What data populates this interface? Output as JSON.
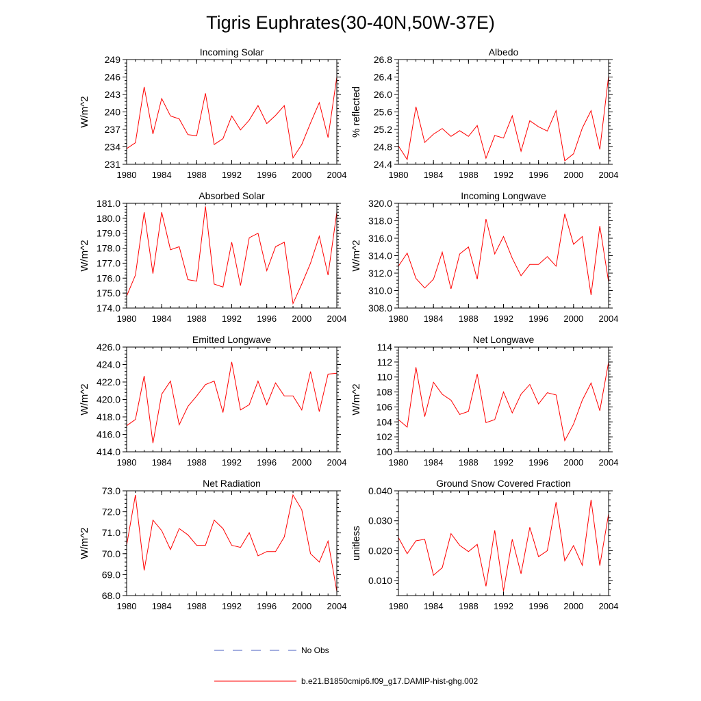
{
  "figure": {
    "title": "Tigris Euphrates(30-40N,50W-37E)",
    "legend": [
      {
        "label": "No Obs",
        "style": "dashed",
        "color": "#4a5fc1"
      },
      {
        "label": "b.e21.B1850cmip6.f09_g17.DAMIP-hist-ghg.002",
        "style": "solid",
        "color": "#ff0000"
      }
    ]
  },
  "chart_data": [
    {
      "type": "line",
      "title": "Incoming Solar",
      "ylabel": "W/m^2",
      "xlim": [
        1980,
        2004
      ],
      "ylim": [
        231,
        249
      ],
      "xticks": [
        "1980",
        "1984",
        "1988",
        "1992",
        "1996",
        "2000",
        "2004"
      ],
      "yticks": [
        "231",
        "234",
        "237",
        "240",
        "243",
        "246",
        "249"
      ],
      "series": [
        {
          "color": "#ff0000",
          "x": [
            1980,
            1981,
            1982,
            1983,
            1984,
            1985,
            1986,
            1987,
            1988,
            1989,
            1990,
            1991,
            1992,
            1993,
            1994,
            1995,
            1996,
            1997,
            1998,
            1999,
            2000,
            2001,
            2002,
            2003,
            2004
          ],
          "values": [
            233.7,
            234.7,
            244.3,
            236.2,
            242.3,
            239.3,
            238.8,
            236.1,
            235.9,
            243.2,
            234.4,
            235.4,
            239.3,
            236.9,
            238.6,
            241.1,
            238.0,
            239.4,
            241.1,
            232.1,
            234.4,
            238.1,
            241.6,
            235.6,
            246.0
          ]
        }
      ]
    },
    {
      "type": "line",
      "title": "Albedo",
      "ylabel": "% reflected",
      "xlim": [
        1980,
        2004
      ],
      "ylim": [
        24.4,
        26.8
      ],
      "xticks": [
        "1980",
        "1984",
        "1988",
        "1992",
        "1996",
        "2000",
        "2004"
      ],
      "yticks": [
        "24.4",
        "24.8",
        "25.2",
        "25.6",
        "26.0",
        "26.4",
        "26.8"
      ],
      "series": [
        {
          "color": "#ff0000",
          "x": [
            1980,
            1981,
            1982,
            1983,
            1984,
            1985,
            1986,
            1987,
            1988,
            1989,
            1990,
            1991,
            1992,
            1993,
            1994,
            1995,
            1996,
            1997,
            1998,
            1999,
            2000,
            2001,
            2002,
            2003,
            2004
          ],
          "values": [
            24.82,
            24.51,
            25.72,
            24.9,
            25.09,
            25.22,
            25.04,
            25.17,
            25.04,
            25.29,
            24.54,
            25.06,
            25.0,
            25.51,
            24.7,
            25.4,
            25.26,
            25.16,
            25.63,
            24.48,
            24.64,
            25.23,
            25.63,
            24.74,
            26.42
          ]
        }
      ]
    },
    {
      "type": "line",
      "title": "Absorbed Solar",
      "ylabel": "W/m^2",
      "xlim": [
        1980,
        2004
      ],
      "ylim": [
        174.0,
        181.0
      ],
      "xticks": [
        "1980",
        "1984",
        "1988",
        "1992",
        "1996",
        "2000",
        "2004"
      ],
      "yticks": [
        "174.0",
        "175.0",
        "176.0",
        "177.0",
        "178.0",
        "179.0",
        "180.0",
        "181.0"
      ],
      "series": [
        {
          "color": "#ff0000",
          "x": [
            1980,
            1981,
            1982,
            1983,
            1984,
            1985,
            1986,
            1987,
            1988,
            1989,
            1990,
            1991,
            1992,
            1993,
            1994,
            1995,
            1996,
            1997,
            1998,
            1999,
            2000,
            2001,
            2002,
            2003,
            2004
          ],
          "values": [
            174.8,
            176.2,
            180.4,
            176.3,
            180.4,
            177.9,
            178.1,
            175.9,
            175.8,
            180.8,
            175.6,
            175.4,
            178.4,
            175.5,
            178.7,
            179.0,
            176.5,
            178.1,
            178.4,
            174.3,
            175.6,
            177.0,
            178.8,
            176.2,
            180.4
          ]
        }
      ]
    },
    {
      "type": "line",
      "title": "Incoming Longwave",
      "ylabel": "W/m^2",
      "xlim": [
        1980,
        2004
      ],
      "ylim": [
        308.0,
        320.0
      ],
      "xticks": [
        "1980",
        "1984",
        "1988",
        "1992",
        "1996",
        "2000",
        "2004"
      ],
      "yticks": [
        "308.0",
        "310.0",
        "312.0",
        "314.0",
        "316.0",
        "318.0",
        "320.0"
      ],
      "series": [
        {
          "color": "#ff0000",
          "x": [
            1980,
            1981,
            1982,
            1983,
            1984,
            1985,
            1986,
            1987,
            1988,
            1989,
            1990,
            1991,
            1992,
            1993,
            1994,
            1995,
            1996,
            1997,
            1998,
            1999,
            2000,
            2001,
            2002,
            2003,
            2004
          ],
          "values": [
            312.8,
            314.3,
            311.4,
            310.3,
            311.3,
            314.4,
            310.2,
            314.2,
            315.0,
            311.3,
            318.2,
            314.2,
            316.2,
            313.7,
            311.7,
            313.0,
            313.0,
            313.9,
            312.8,
            318.8,
            315.3,
            316.2,
            309.5,
            317.4,
            311.0
          ]
        }
      ]
    },
    {
      "type": "line",
      "title": "Emitted Longwave",
      "ylabel": "W/m^2",
      "xlim": [
        1980,
        2004
      ],
      "ylim": [
        414.0,
        426.0
      ],
      "xticks": [
        "1980",
        "1984",
        "1988",
        "1992",
        "1996",
        "2000",
        "2004"
      ],
      "yticks": [
        "414.0",
        "416.0",
        "418.0",
        "420.0",
        "422.0",
        "424.0",
        "426.0"
      ],
      "series": [
        {
          "color": "#ff0000",
          "x": [
            1980,
            1981,
            1982,
            1983,
            1984,
            1985,
            1986,
            1987,
            1988,
            1989,
            1990,
            1991,
            1992,
            1993,
            1994,
            1995,
            1996,
            1997,
            1998,
            1999,
            2000,
            2001,
            2002,
            2003,
            2004
          ],
          "values": [
            417.0,
            417.7,
            422.7,
            415.0,
            420.6,
            422.1,
            417.1,
            419.2,
            420.4,
            421.7,
            422.1,
            418.5,
            424.3,
            418.8,
            419.4,
            422.1,
            419.4,
            421.9,
            420.4,
            420.4,
            418.8,
            423.2,
            418.6,
            422.9,
            423.0
          ]
        }
      ]
    },
    {
      "type": "line",
      "title": "Net Longwave",
      "ylabel": "W/m^2",
      "xlim": [
        1980,
        2004
      ],
      "ylim": [
        100,
        114
      ],
      "xticks": [
        "1980",
        "1984",
        "1988",
        "1992",
        "1996",
        "2000",
        "2004"
      ],
      "yticks": [
        "100",
        "102",
        "104",
        "106",
        "108",
        "110",
        "112",
        "114"
      ],
      "series": [
        {
          "color": "#ff0000",
          "x": [
            1980,
            1981,
            1982,
            1983,
            1984,
            1985,
            1986,
            1987,
            1988,
            1989,
            1990,
            1991,
            1992,
            1993,
            1994,
            1995,
            1996,
            1997,
            1998,
            1999,
            2000,
            2001,
            2002,
            2003,
            2004
          ],
          "values": [
            104.3,
            103.3,
            111.3,
            104.7,
            109.3,
            107.7,
            106.9,
            105.0,
            105.4,
            110.4,
            103.9,
            104.3,
            108.0,
            105.2,
            107.7,
            109.0,
            106.4,
            107.9,
            107.6,
            101.5,
            103.7,
            106.9,
            109.2,
            105.5,
            112.0
          ]
        }
      ]
    },
    {
      "type": "line",
      "title": "Net Radiation",
      "ylabel": "W/m^2",
      "xlim": [
        1980,
        2004
      ],
      "ylim": [
        68.0,
        73.0
      ],
      "xticks": [
        "1980",
        "1984",
        "1988",
        "1992",
        "1996",
        "2000",
        "2004"
      ],
      "yticks": [
        "68.0",
        "69.0",
        "70.0",
        "71.0",
        "72.0",
        "73.0"
      ],
      "series": [
        {
          "color": "#ff0000",
          "x": [
            1980,
            1981,
            1982,
            1983,
            1984,
            1985,
            1986,
            1987,
            1988,
            1989,
            1990,
            1991,
            1992,
            1993,
            1994,
            1995,
            1996,
            1997,
            1998,
            1999,
            2000,
            2001,
            2002,
            2003,
            2004
          ],
          "values": [
            70.4,
            72.8,
            69.2,
            71.6,
            71.1,
            70.2,
            71.2,
            70.9,
            70.4,
            70.4,
            71.6,
            71.2,
            70.4,
            70.3,
            71.0,
            69.9,
            70.1,
            70.1,
            70.8,
            72.8,
            72.1,
            70.0,
            69.6,
            70.6,
            68.2
          ]
        }
      ]
    },
    {
      "type": "line",
      "title": "Ground Snow Covered Fraction",
      "ylabel": "unitless",
      "xlim": [
        1980,
        2004
      ],
      "ylim": [
        0.005,
        0.04
      ],
      "xticks": [
        "1980",
        "1984",
        "1988",
        "1992",
        "1996",
        "2000",
        "2004"
      ],
      "yticks": [
        "0.010",
        "0.020",
        "0.030",
        "0.040"
      ],
      "series": [
        {
          "color": "#ff0000",
          "x": [
            1980,
            1981,
            1982,
            1983,
            1984,
            1985,
            1986,
            1987,
            1988,
            1989,
            1990,
            1991,
            1992,
            1993,
            1994,
            1995,
            1996,
            1997,
            1998,
            1999,
            2000,
            2001,
            2002,
            2003,
            2004
          ],
          "values": [
            0.0244,
            0.019,
            0.0233,
            0.0238,
            0.0118,
            0.0143,
            0.0257,
            0.0218,
            0.0197,
            0.0221,
            0.0081,
            0.0268,
            0.0065,
            0.0238,
            0.0123,
            0.0278,
            0.018,
            0.02,
            0.0362,
            0.0166,
            0.0217,
            0.0151,
            0.037,
            0.015,
            0.0323
          ]
        }
      ]
    }
  ]
}
